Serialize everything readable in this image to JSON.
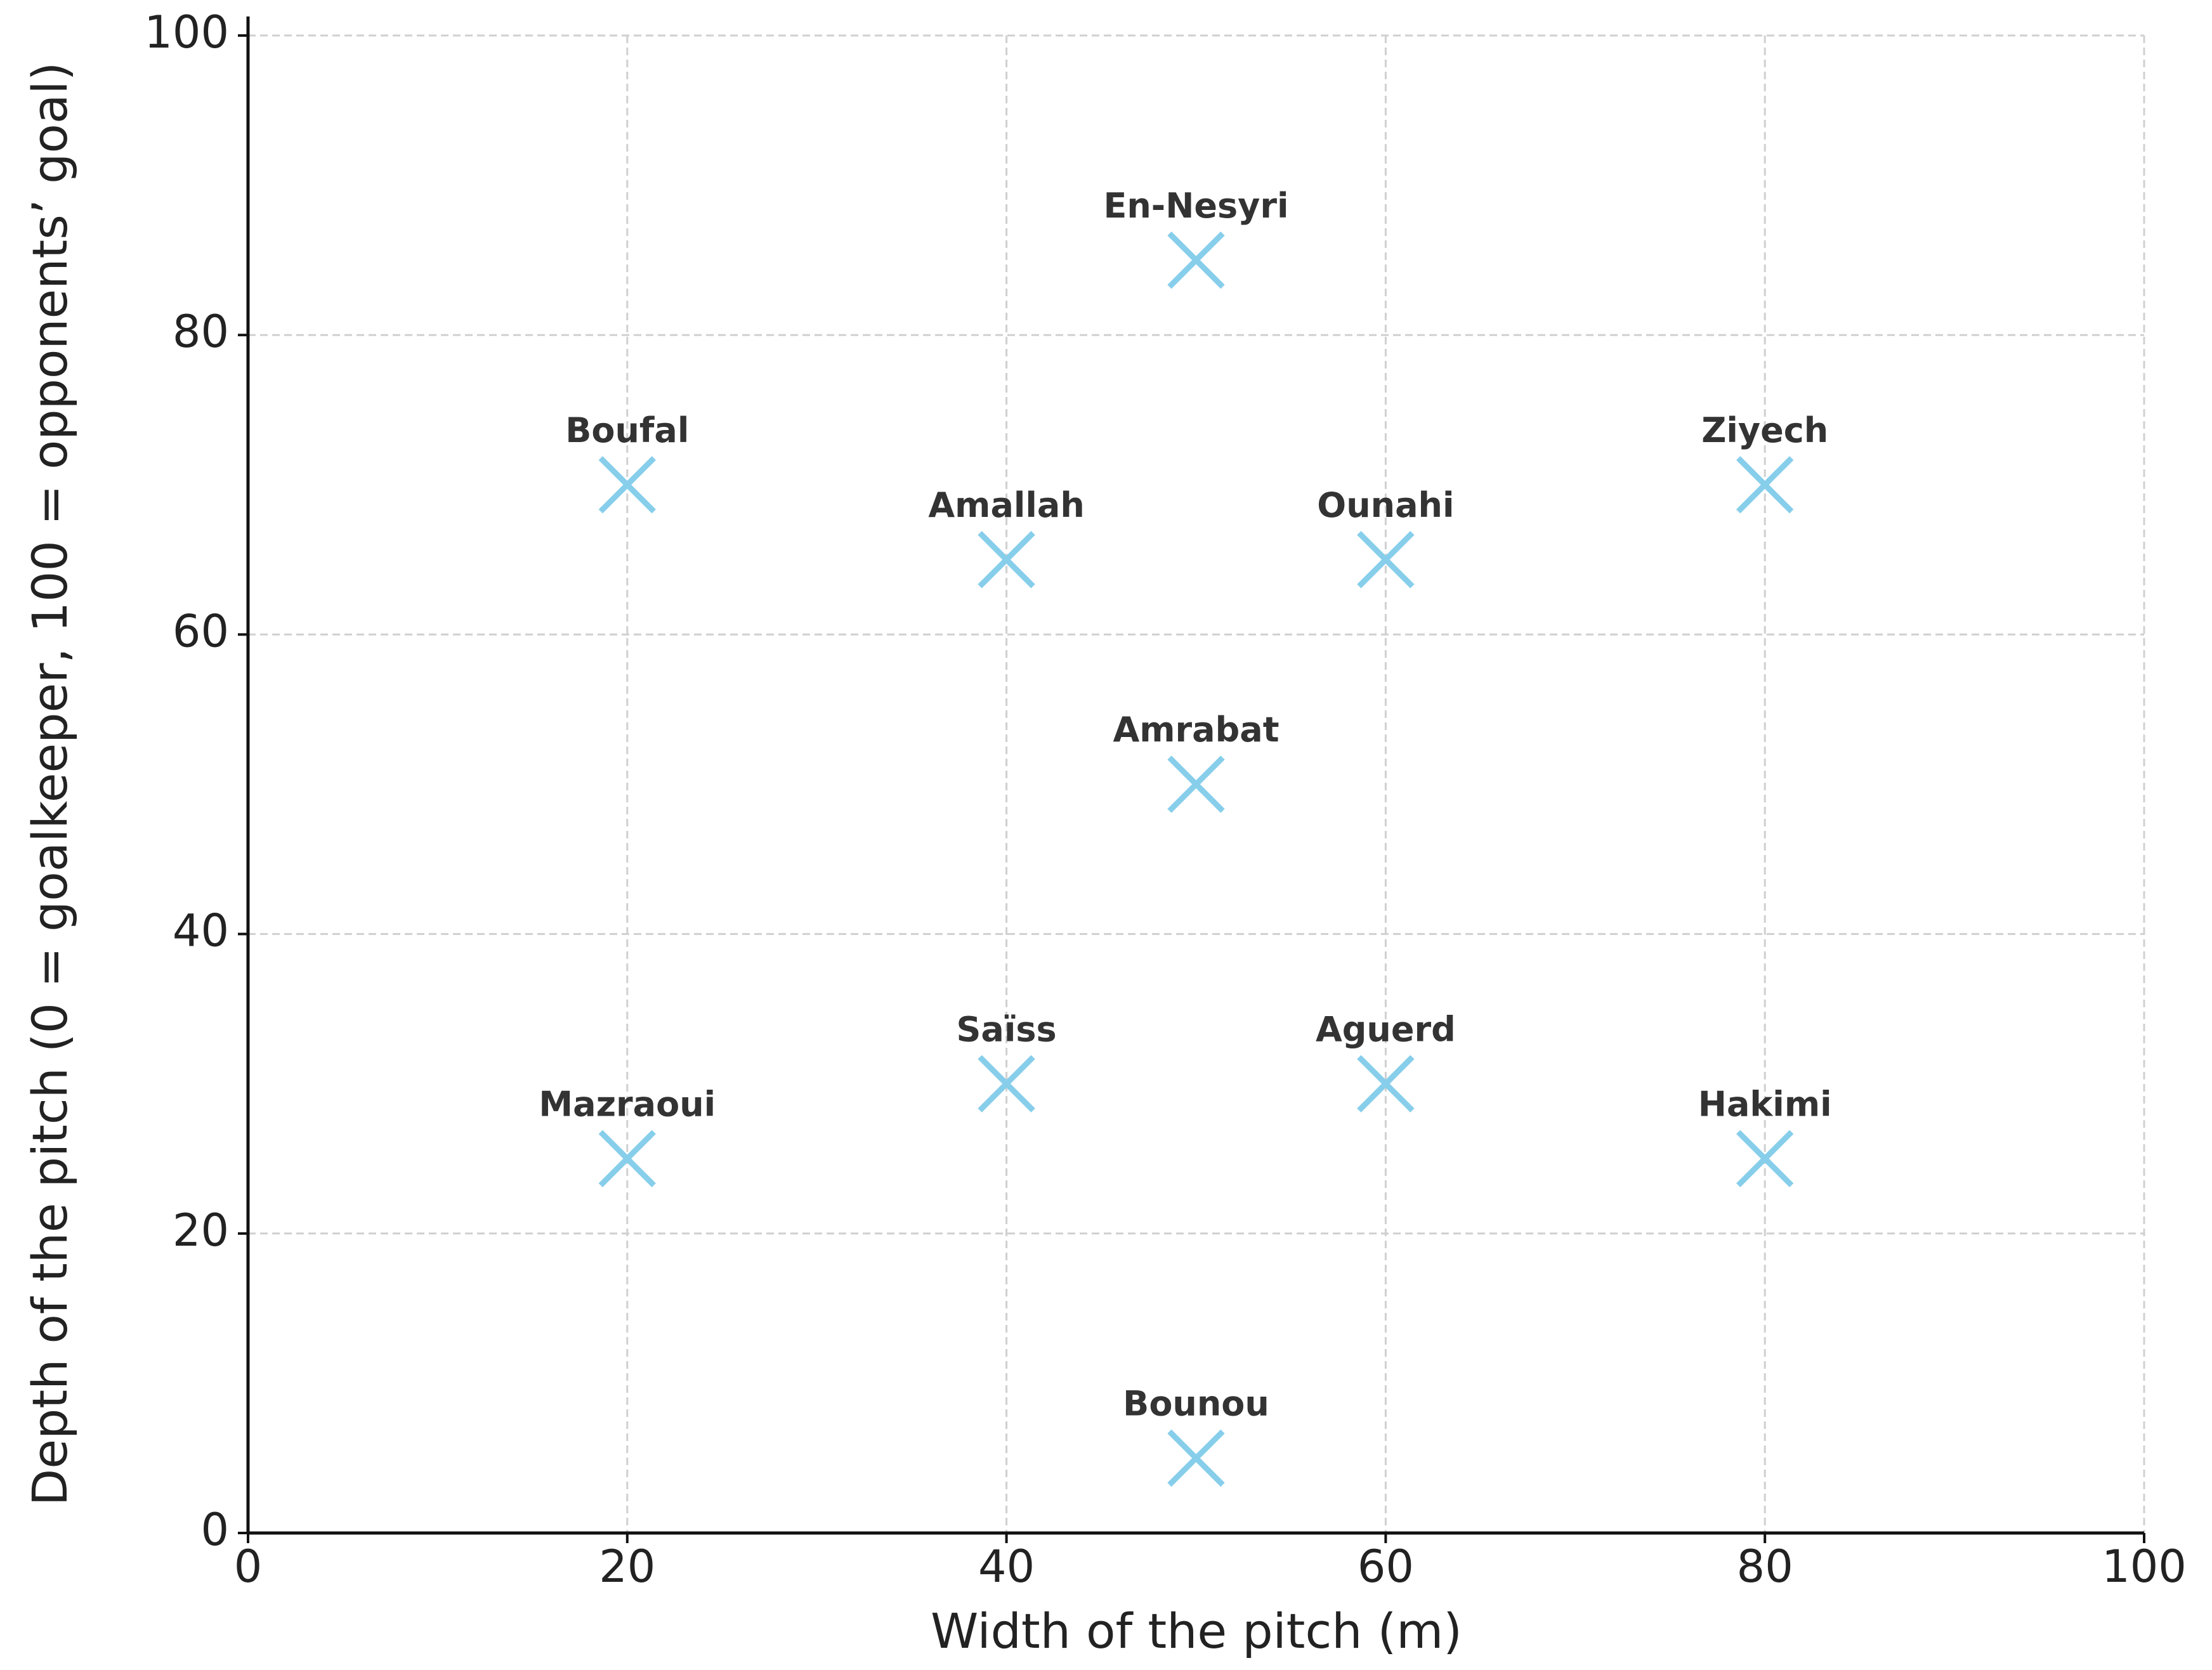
{
  "chart_data": {
    "type": "scatter",
    "marker": "x",
    "color": "#87ceeb",
    "xlabel": "Width of the pitch (m)",
    "ylabel": "Depth of the pitch (0 = goalkeeper, 100 = opponents’ goal)",
    "labels": [
      "En-Nesyri",
      "Boufal",
      "Ziyech",
      "Amallah",
      "Ounahi",
      "Amrabat",
      "Saïss",
      "Aguerd",
      "Mazraoui",
      "Hakimi",
      "Bounou"
    ],
    "x": [
      50,
      20,
      80,
      40,
      60,
      50,
      40,
      60,
      20,
      80,
      50
    ],
    "values": [
      85,
      70,
      70,
      65,
      65,
      50,
      30,
      30,
      25,
      25,
      5
    ],
    "xlim": [
      0,
      100
    ],
    "ylim": [
      0,
      100
    ],
    "xticks": [
      0,
      20,
      40,
      60,
      80,
      100
    ],
    "yticks": [
      0,
      20,
      40,
      60,
      80,
      100
    ],
    "grid": true
  }
}
